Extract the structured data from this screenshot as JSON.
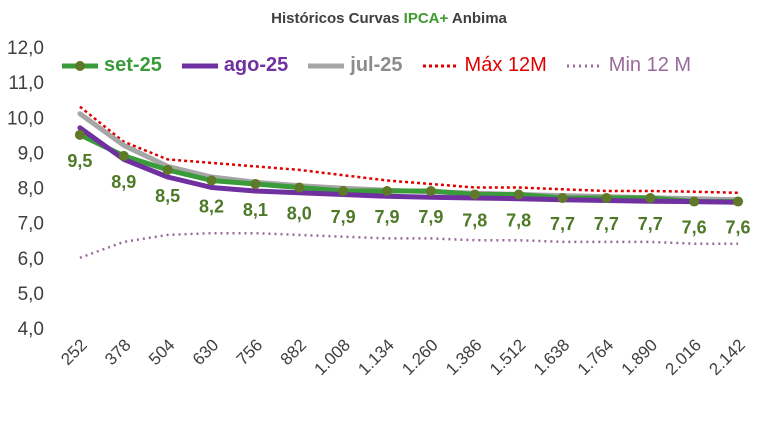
{
  "title": {
    "prefix": "Históricos Curvas ",
    "highlight": "IPCA+",
    "suffix": " Anbima"
  },
  "colors": {
    "set25": "#3a9b3a",
    "set25_marker": "#5e7a28",
    "set25_label": "#4e7a28",
    "ago25": "#7030a0",
    "jul25": "#a6a6a6",
    "max12m": "#e00000",
    "min12m": "#9a6a9a",
    "axis_text": "#404040",
    "grid": "#d9d9d9"
  },
  "legend": [
    {
      "key": "set25",
      "label": "set-25"
    },
    {
      "key": "ago25",
      "label": "ago-25"
    },
    {
      "key": "jul25",
      "label": "jul-25"
    },
    {
      "key": "max12m",
      "label": "Máx 12M"
    },
    {
      "key": "min12m",
      "label": "Min 12 M"
    }
  ],
  "chart_data": {
    "type": "line",
    "title": "Históricos Curvas IPCA+ Anbima",
    "xlabel": "",
    "ylabel": "",
    "ylim": [
      4.0,
      12.0
    ],
    "yticks": [
      "4,0",
      "5,0",
      "6,0",
      "7,0",
      "8,0",
      "9,0",
      "10,0",
      "11,0",
      "12,0"
    ],
    "categories": [
      "252",
      "378",
      "504",
      "630",
      "756",
      "882",
      "1.008",
      "1.134",
      "1.260",
      "1.386",
      "1.512",
      "1.638",
      "1.764",
      "1.890",
      "2.016",
      "2.142"
    ],
    "series": [
      {
        "key": "set25",
        "name": "set-25",
        "values": [
          9.5,
          8.9,
          8.5,
          8.2,
          8.1,
          8.0,
          7.9,
          7.9,
          7.9,
          7.8,
          7.8,
          7.7,
          7.7,
          7.7,
          7.6,
          7.6
        ]
      },
      {
        "key": "ago25",
        "name": "ago-25",
        "values": [
          9.7,
          8.8,
          8.3,
          8.0,
          7.9,
          7.85,
          7.8,
          7.75,
          7.72,
          7.7,
          7.68,
          7.65,
          7.63,
          7.61,
          7.6,
          7.58
        ]
      },
      {
        "key": "jul25",
        "name": "jul-25",
        "values": [
          10.1,
          9.2,
          8.6,
          8.3,
          8.15,
          8.05,
          7.98,
          7.92,
          7.88,
          7.84,
          7.8,
          7.77,
          7.74,
          7.71,
          7.68,
          7.65
        ]
      },
      {
        "key": "max12m",
        "name": "Máx 12M",
        "values": [
          10.3,
          9.3,
          8.8,
          8.7,
          8.6,
          8.5,
          8.35,
          8.2,
          8.1,
          8.0,
          8.0,
          7.95,
          7.9,
          7.9,
          7.88,
          7.85
        ]
      },
      {
        "key": "min12m",
        "name": "Min 12 M",
        "values": [
          6.0,
          6.45,
          6.65,
          6.7,
          6.7,
          6.65,
          6.6,
          6.55,
          6.55,
          6.5,
          6.5,
          6.45,
          6.45,
          6.45,
          6.4,
          6.4
        ]
      }
    ],
    "data_labels": [
      "9,5",
      "8,9",
      "8,5",
      "8,2",
      "8,1",
      "8,0",
      "7,9",
      "7,9",
      "7,9",
      "7,8",
      "7,8",
      "7,7",
      "7,7",
      "7,7",
      "7,6",
      "7,6"
    ]
  }
}
